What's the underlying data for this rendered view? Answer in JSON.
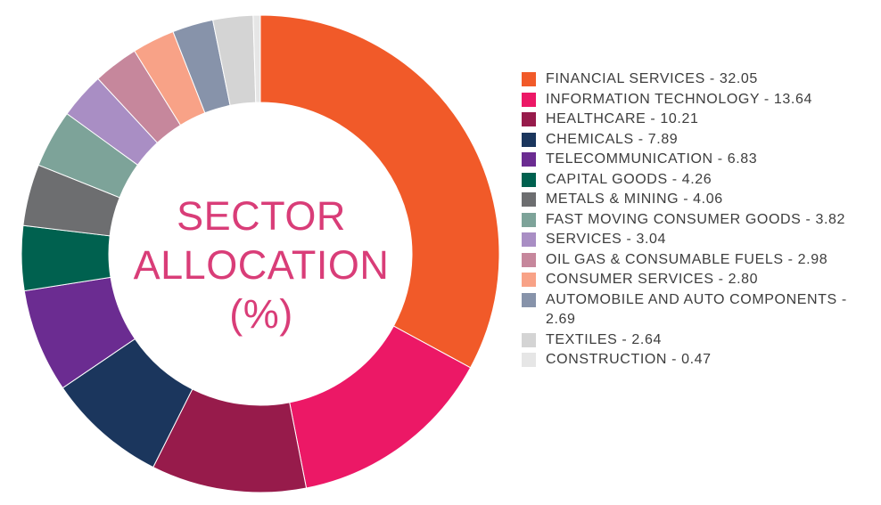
{
  "chart_data": {
    "type": "pie",
    "title": "SECTOR ALLOCATION (%)",
    "title_lines": [
      "SECTOR",
      "ALLOCATION",
      "(%)"
    ],
    "legend_position": "right",
    "slices": [
      {
        "name": "FINANCIAL SERVICES",
        "value": 32.05,
        "label": "FINANCIAL SERVICES - 32.05",
        "color": "#f15a29"
      },
      {
        "name": "INFORMATION TECHNOLOGY",
        "value": 13.64,
        "label": "INFORMATION TECHNOLOGY - 13.64",
        "color": "#ec1866"
      },
      {
        "name": "HEALTHCARE",
        "value": 10.21,
        "label": "HEALTHCARE - 10.21",
        "color": "#971b4b"
      },
      {
        "name": "CHEMICALS",
        "value": 7.89,
        "label": "CHEMICALS - 7.89",
        "color": "#1b365d"
      },
      {
        "name": "TELECOMMUNICATION",
        "value": 6.83,
        "label": "TELECOMMUNICATION - 6.83",
        "color": "#6b2c91"
      },
      {
        "name": "CAPITAL GOODS",
        "value": 4.26,
        "label": "CAPITAL GOODS - 4.26",
        "color": "#00614f"
      },
      {
        "name": "METALS & MINING",
        "value": 4.06,
        "label": "METALS & MINING - 4.06",
        "color": "#6d6e70"
      },
      {
        "name": "FAST MOVING CONSUMER GOODS",
        "value": 3.82,
        "label": "FAST MOVING CONSUMER GOODS - 3.82",
        "color": "#7da399"
      },
      {
        "name": "SERVICES",
        "value": 3.04,
        "label": "SERVICES - 3.04",
        "color": "#a98ec4"
      },
      {
        "name": "OIL GAS & CONSUMABLE FUELS",
        "value": 2.98,
        "label": "OIL GAS & CONSUMABLE FUELS - 2.98",
        "color": "#c6879c"
      },
      {
        "name": "CONSUMER SERVICES",
        "value": 2.8,
        "label": "CONSUMER SERVICES - 2.80",
        "color": "#f8a287"
      },
      {
        "name": "AUTOMOBILE AND AUTO COMPONENTS",
        "value": 2.69,
        "label": "AUTOMOBILE AND AUTO COMPONENTS - 2.69",
        "color": "#8793aa"
      },
      {
        "name": "TEXTILES",
        "value": 2.64,
        "label": "TEXTILES - 2.64",
        "color": "#d4d4d4"
      },
      {
        "name": "CONSTRUCTION",
        "value": 0.47,
        "label": "CONSTRUCTION - 0.47",
        "color": "#e6e6e6"
      }
    ]
  }
}
